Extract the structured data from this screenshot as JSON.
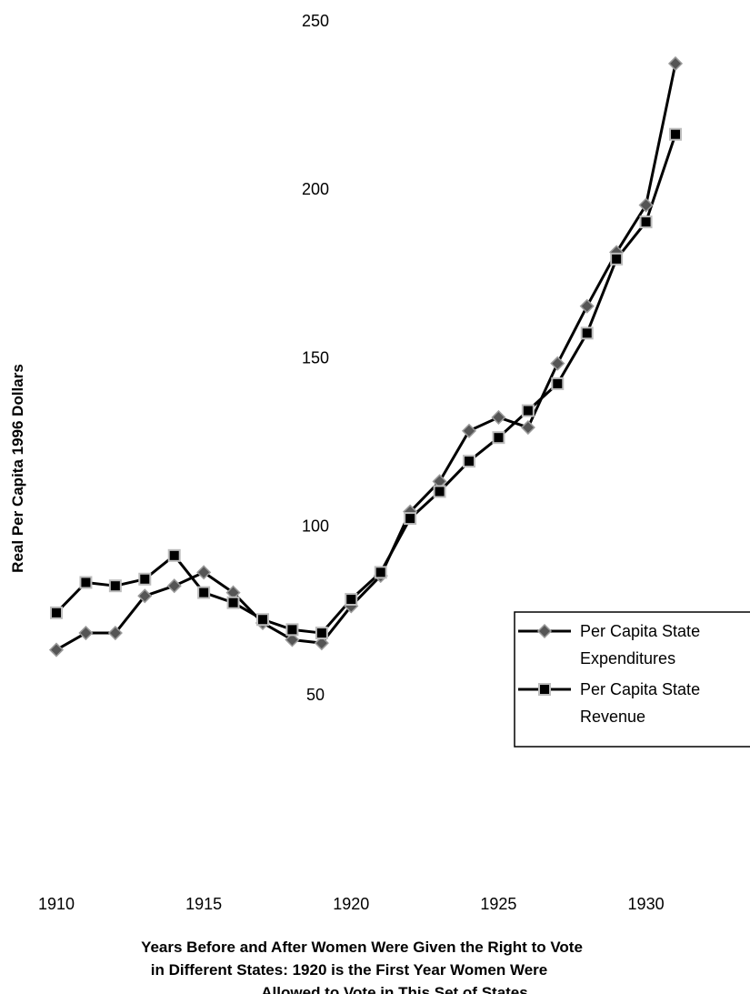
{
  "chart_data": {
    "type": "line",
    "title": "",
    "xlabel_lines": [
      "Years Before and After Women Were Given the Right to Vote",
      "in Different States:  1920 is the First Year Women Were",
      "Allowed to Vote in This Set of States"
    ],
    "ylabel": "Real Per Capita 1996 Dollars",
    "x": [
      1910,
      1911,
      1912,
      1913,
      1914,
      1915,
      1916,
      1917,
      1918,
      1919,
      1920,
      1921,
      1922,
      1923,
      1924,
      1925,
      1926,
      1927,
      1928,
      1929,
      1930,
      1931
    ],
    "xlim": [
      1909.5,
      1931.5
    ],
    "ylim": [
      0,
      250
    ],
    "x_ticks": [
      1910,
      1915,
      1920,
      1925,
      1930
    ],
    "y_ticks": [
      50,
      100,
      150,
      200,
      250
    ],
    "grid": false,
    "legend_position": "right",
    "series": [
      {
        "name": "Per Capita State Expenditures",
        "legend_lines": [
          "Per Capita State",
          "Expenditures"
        ],
        "marker": "diamond",
        "values": [
          63,
          68,
          68,
          79,
          82,
          86,
          80,
          71,
          66,
          65,
          76,
          85,
          104,
          113,
          128,
          132,
          129,
          148,
          165,
          181,
          195,
          237
        ]
      },
      {
        "name": "Per Capita State Revenue",
        "legend_lines": [
          "Per Capita State",
          "Revenue"
        ],
        "marker": "square",
        "values": [
          74,
          83,
          82,
          84,
          91,
          80,
          77,
          72,
          69,
          68,
          78,
          86,
          102,
          110,
          119,
          126,
          134,
          142,
          157,
          179,
          190,
          216
        ]
      }
    ]
  }
}
